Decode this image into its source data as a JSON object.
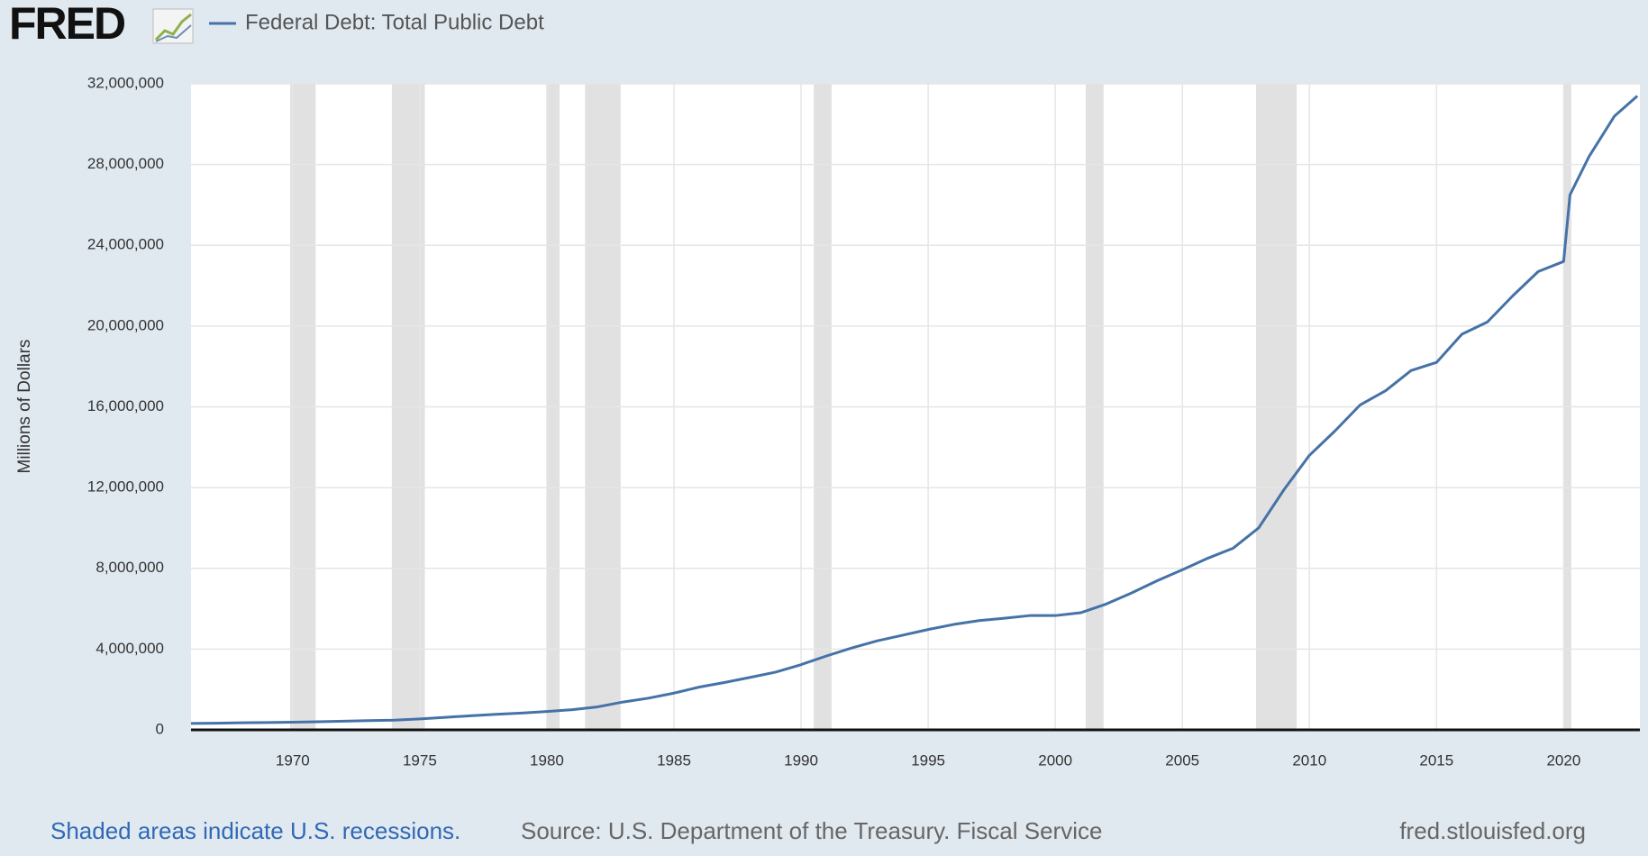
{
  "logo": "FRED",
  "chart_data": {
    "type": "line",
    "y_label": "Millions of Dollars",
    "series": [
      {
        "name": "Federal Debt: Total Public Debt",
        "color": "#4572a7",
        "x": [
          1966,
          1967,
          1968,
          1969,
          1970,
          1971,
          1972,
          1973,
          1974,
          1975,
          1976,
          1977,
          1978,
          1979,
          1980,
          1981,
          1982,
          1983,
          1984,
          1985,
          1986,
          1987,
          1988,
          1989,
          1990,
          1991,
          1992,
          1993,
          1994,
          1995,
          1996,
          1997,
          1998,
          1999,
          2000,
          2001,
          2002,
          2003,
          2004,
          2005,
          2006,
          2007,
          2008,
          2009,
          2010,
          2011,
          2012,
          2013,
          2014,
          2015,
          2016,
          2017,
          2018,
          2019,
          2020,
          2020.25,
          2021,
          2022,
          2022.9
        ],
        "values": [
          320000,
          330000,
          350000,
          360000,
          380000,
          400000,
          430000,
          460000,
          480000,
          540000,
          620000,
          700000,
          770000,
          830000,
          910000,
          1000000,
          1140000,
          1380000,
          1570000,
          1820000,
          2120000,
          2350000,
          2600000,
          2860000,
          3230000,
          3660000,
          4060000,
          4410000,
          4690000,
          4970000,
          5220000,
          5410000,
          5530000,
          5660000,
          5660000,
          5800000,
          6230000,
          6780000,
          7380000,
          7930000,
          8500000,
          9000000,
          10000000,
          11900000,
          13600000,
          14800000,
          16100000,
          16800000,
          17800000,
          18200000,
          19600000,
          20200000,
          21500000,
          22700000,
          23200000,
          26500000,
          28400000,
          30400000,
          31400000
        ]
      }
    ],
    "recessions": [
      [
        1969.9,
        1970.9
      ],
      [
        1973.9,
        1975.2
      ],
      [
        1980.0,
        1980.5
      ],
      [
        1981.5,
        1982.9
      ],
      [
        1990.5,
        1991.2
      ],
      [
        2001.2,
        2001.9
      ],
      [
        2007.9,
        2009.5
      ],
      [
        2020.0,
        2020.3
      ]
    ],
    "recession_color": "#e1e1e1",
    "xlim": [
      1966,
      2023
    ],
    "xticks": [
      1970,
      1975,
      1980,
      1985,
      1990,
      1995,
      2000,
      2005,
      2010,
      2015,
      2020
    ],
    "ylim": [
      0,
      32000000
    ],
    "yticks": [
      0,
      {
        "value": 4000000,
        "label": "4,000,000"
      },
      {
        "value": 8000000,
        "label": "8,000,000"
      },
      {
        "value": 12000000,
        "label": "12,000,000"
      },
      {
        "value": 16000000,
        "label": "16,000,000"
      },
      {
        "value": 20000000,
        "label": "20,000,000"
      },
      {
        "value": 24000000,
        "label": "24,000,000"
      },
      {
        "value": 28000000,
        "label": "28,000,000"
      },
      {
        "value": 32000000,
        "label": "32,000,000"
      }
    ],
    "grid": true
  },
  "footer": {
    "recession_note": "Shaded areas indicate U.S. recessions.",
    "source": "Source: U.S. Department of the Treasury. Fiscal Service",
    "site": "fred.stlouisfed.org"
  }
}
